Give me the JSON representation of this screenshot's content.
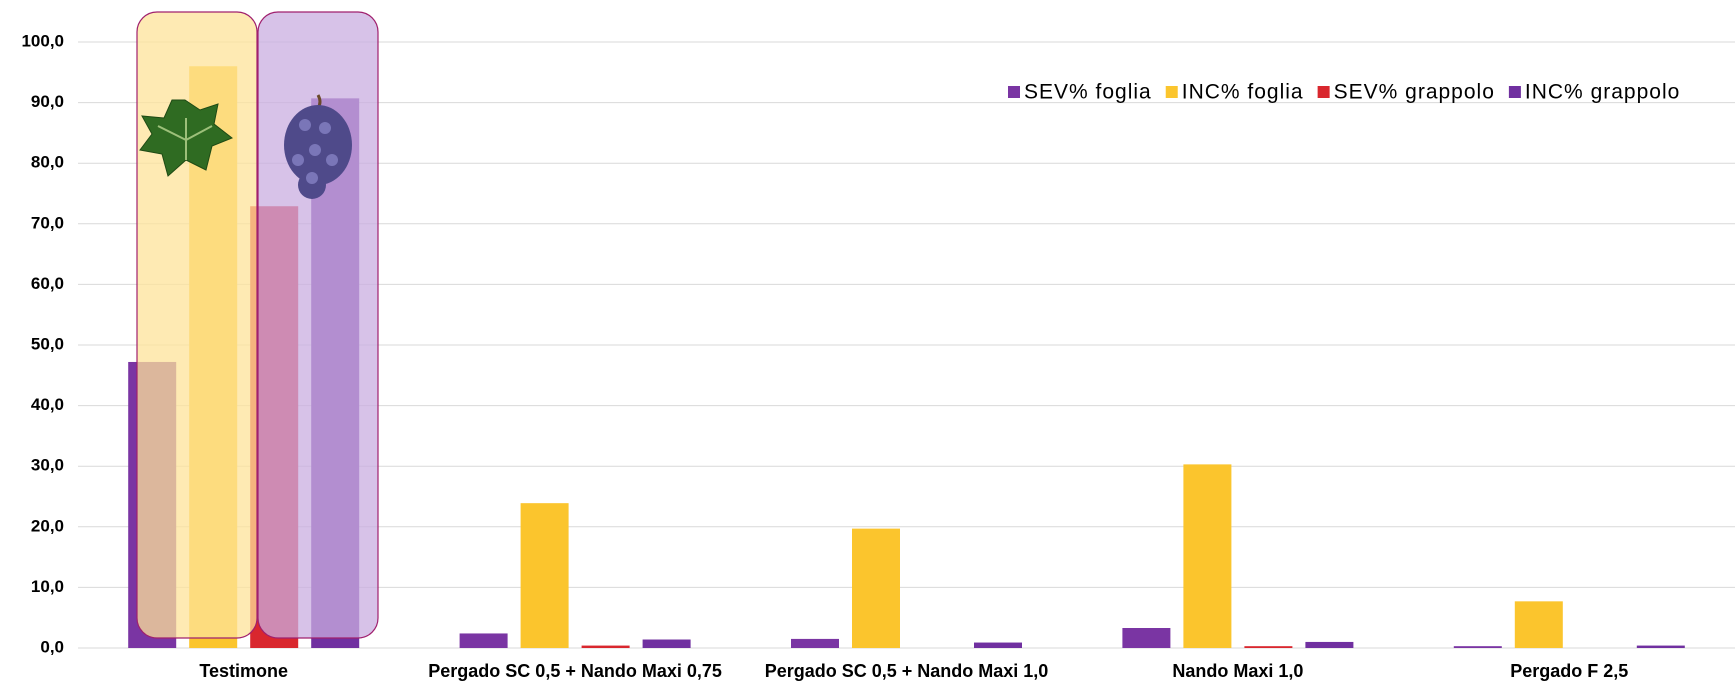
{
  "chart_data": {
    "type": "bar",
    "categories": [
      "Testimone",
      "Pergado SC 0,5 + Nando Maxi 0,75",
      "Pergado SC 0,5 + Nando Maxi 1,0",
      "Nando Maxi 1,0",
      "Pergado F 2,5"
    ],
    "series": [
      {
        "name": "SEV% foglia",
        "color": "#7a35a3",
        "values": [
          47.2,
          2.4,
          1.5,
          3.3,
          0.3
        ]
      },
      {
        "name": "INC% foglia",
        "color": "#fbc52d",
        "values": [
          96.0,
          23.9,
          19.7,
          30.3,
          7.7
        ]
      },
      {
        "name": "SEV% grappolo",
        "color": "#d9272e",
        "values": [
          72.9,
          0.4,
          0.0,
          0.3,
          0.0
        ]
      },
      {
        "name": "INC% grappolo",
        "color": "#7030a0",
        "values": [
          90.7,
          1.4,
          0.9,
          1.0,
          0.4
        ]
      }
    ],
    "ylim": [
      0,
      100
    ],
    "yticks": [
      {
        "value": 0,
        "label": "0,0"
      },
      {
        "value": 10,
        "label": "10,0"
      },
      {
        "value": 20,
        "label": "20,0"
      },
      {
        "value": 30,
        "label": "30,0"
      },
      {
        "value": 40,
        "label": "40,0"
      },
      {
        "value": 50,
        "label": "50,0"
      },
      {
        "value": 60,
        "label": "60,0"
      },
      {
        "value": 70,
        "label": "70,0"
      },
      {
        "value": 80,
        "label": "80,0"
      },
      {
        "value": 90,
        "label": "90,0"
      },
      {
        "value": 100,
        "label": "100,0"
      }
    ],
    "grid": true,
    "legend": "top-right"
  }
}
